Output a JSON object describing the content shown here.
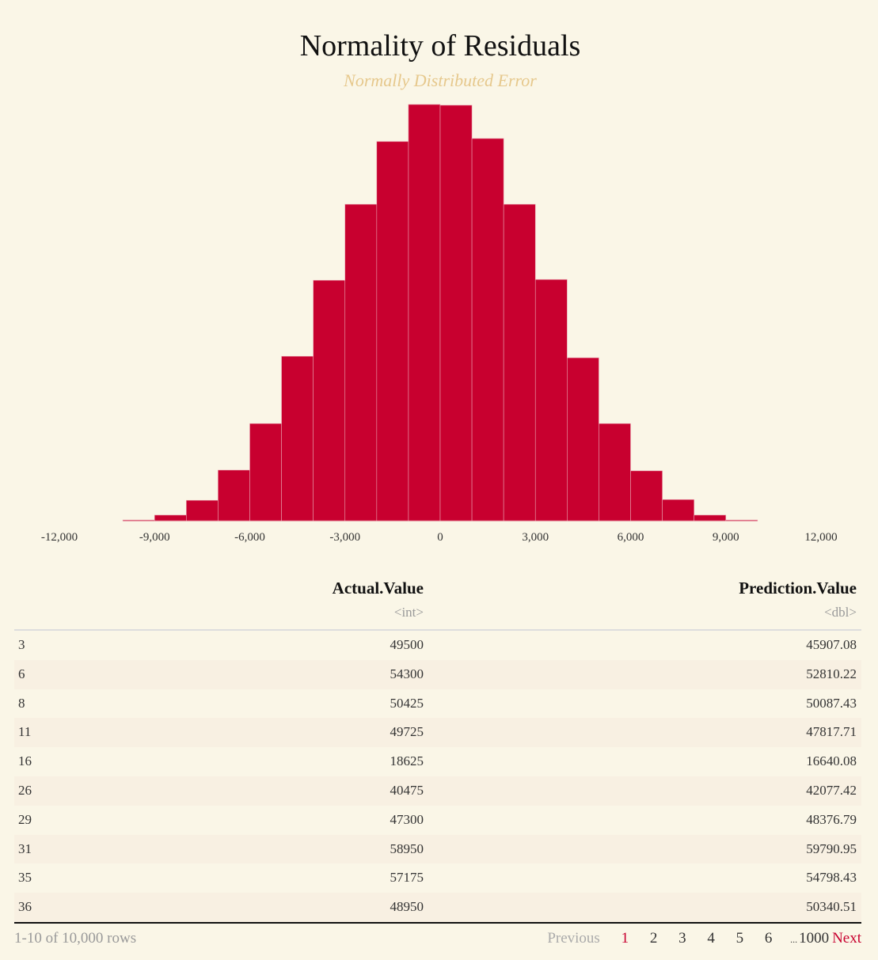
{
  "chart_data": {
    "type": "bar",
    "title": "Normality of Residuals",
    "subtitle": "Normally Distributed Error",
    "xlabel": "",
    "ylabel": "",
    "bin_width": 1000,
    "bin_starts": [
      -10000,
      -9000,
      -8000,
      -7000,
      -6000,
      -5000,
      -4000,
      -3000,
      -2000,
      -1000,
      0,
      1000,
      2000,
      3000,
      4000,
      5000,
      6000,
      7000,
      8000,
      9000
    ],
    "values": [
      2,
      15,
      54,
      134,
      257,
      435,
      636,
      837,
      1003,
      1101,
      1099,
      1011,
      837,
      638,
      431,
      257,
      132,
      56,
      15,
      2
    ],
    "xlim": [
      -12000,
      12000
    ],
    "ylim": [
      0,
      1101
    ],
    "xticks": [
      -12000,
      -9000,
      -6000,
      -3000,
      0,
      3000,
      6000,
      9000,
      12000
    ],
    "xtick_labels": [
      "-12,000",
      "-9,000",
      "-6,000",
      "-3,000",
      "0",
      "3,000",
      "6,000",
      "9,000",
      "12,000"
    ],
    "bar_color": "#c8002f",
    "grid": false
  },
  "table": {
    "columns": [
      {
        "name": "",
        "type": ""
      },
      {
        "name": "Actual.Value",
        "type": "<int>"
      },
      {
        "name": "Prediction.Value",
        "type": "<dbl>"
      }
    ],
    "rows": [
      [
        "3",
        "49500",
        "45907.08"
      ],
      [
        "6",
        "54300",
        "52810.22"
      ],
      [
        "8",
        "50425",
        "50087.43"
      ],
      [
        "11",
        "49725",
        "47817.71"
      ],
      [
        "16",
        "18625",
        "16640.08"
      ],
      [
        "26",
        "40475",
        "42077.42"
      ],
      [
        "29",
        "47300",
        "48376.79"
      ],
      [
        "31",
        "58950",
        "59790.95"
      ],
      [
        "35",
        "57175",
        "54798.43"
      ],
      [
        "36",
        "48950",
        "50340.51"
      ]
    ],
    "info": "1-10 of 10,000 rows",
    "pager": {
      "previous": "Previous",
      "pages": [
        "1",
        "2",
        "3",
        "4",
        "5",
        "6"
      ],
      "ellipsis": "...",
      "last": "1000",
      "next": "Next"
    }
  }
}
